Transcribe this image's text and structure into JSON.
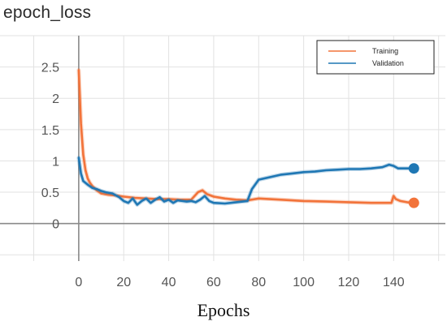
{
  "chart_data": {
    "type": "line",
    "title": "epoch_loss",
    "xlabel": "Epochs",
    "ylabel": "",
    "xlim": [
      -35,
      163
    ],
    "ylim": [
      -0.6,
      3.0
    ],
    "x_ticks": [
      0,
      20,
      40,
      60,
      80,
      100,
      120,
      140
    ],
    "y_ticks": [
      0,
      0.5,
      1,
      1.5,
      2,
      2.5
    ],
    "y_tick_labels": [
      "0",
      "0.5",
      "1",
      "1.5",
      "2",
      "2.5"
    ],
    "grid": true,
    "legend_position": "top-right",
    "series": [
      {
        "name": "Training",
        "color": "#f2733a",
        "x": [
          0,
          1,
          2,
          3,
          4,
          5,
          6,
          8,
          10,
          13,
          16,
          20,
          25,
          30,
          35,
          40,
          45,
          50,
          53,
          55,
          57,
          60,
          65,
          70,
          75,
          80,
          90,
          100,
          110,
          120,
          130,
          139,
          140,
          141,
          143,
          146,
          149
        ],
        "y": [
          2.45,
          1.6,
          1.1,
          0.85,
          0.72,
          0.65,
          0.6,
          0.53,
          0.48,
          0.46,
          0.45,
          0.43,
          0.41,
          0.4,
          0.39,
          0.39,
          0.38,
          0.38,
          0.5,
          0.53,
          0.47,
          0.43,
          0.4,
          0.38,
          0.37,
          0.4,
          0.38,
          0.36,
          0.35,
          0.34,
          0.33,
          0.33,
          0.44,
          0.39,
          0.36,
          0.34,
          0.33
        ]
      },
      {
        "name": "Validation",
        "color": "#1f77b4",
        "x": [
          0,
          1,
          2,
          4,
          6,
          8,
          10,
          12,
          15,
          18,
          20,
          22,
          24,
          26,
          28,
          30,
          32,
          34,
          36,
          38,
          40,
          42,
          44,
          46,
          48,
          50,
          52,
          54,
          56,
          58,
          60,
          65,
          70,
          75,
          77,
          80,
          85,
          90,
          95,
          100,
          105,
          110,
          115,
          120,
          125,
          130,
          135,
          138,
          140,
          142,
          145,
          149
        ],
        "y": [
          1.05,
          0.8,
          0.68,
          0.62,
          0.57,
          0.55,
          0.52,
          0.5,
          0.48,
          0.42,
          0.36,
          0.33,
          0.4,
          0.3,
          0.36,
          0.4,
          0.33,
          0.38,
          0.42,
          0.35,
          0.38,
          0.33,
          0.37,
          0.36,
          0.35,
          0.36,
          0.34,
          0.38,
          0.44,
          0.36,
          0.33,
          0.32,
          0.34,
          0.36,
          0.55,
          0.7,
          0.74,
          0.78,
          0.8,
          0.82,
          0.83,
          0.85,
          0.86,
          0.87,
          0.87,
          0.88,
          0.9,
          0.94,
          0.92,
          0.88,
          0.88,
          0.88
        ]
      }
    ]
  }
}
